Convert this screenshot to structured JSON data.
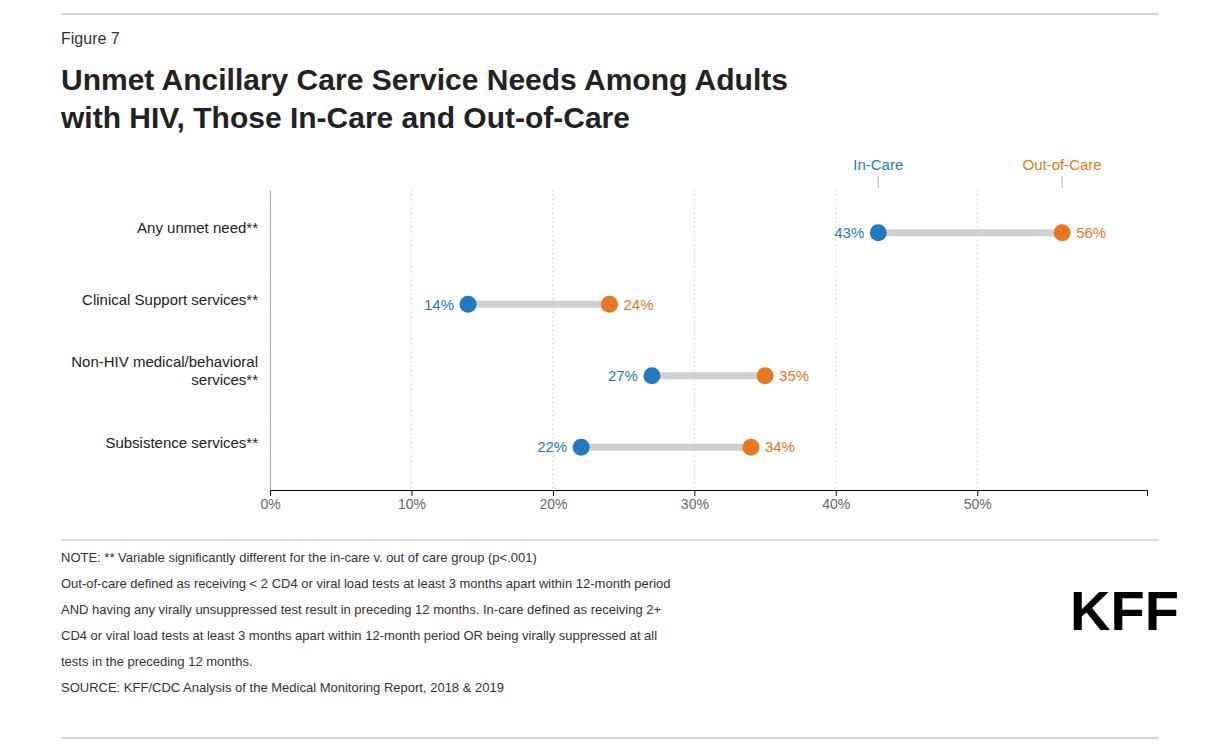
{
  "chart_data": {
    "type": "dumbbell",
    "orientation": "horizontal",
    "subtitle": "Figure 7",
    "title": "Unmet Ancillary Care Service Needs Among Adults\nwith HIV, Those In-Care and Out-of-Care",
    "categories": [
      "Any unmet need**",
      "Clinical Support services**",
      "Non-HIV medical/behavioral\nservices**",
      "Subsistence services**"
    ],
    "series": [
      {
        "name": "In-Care",
        "color": "#1f7abf",
        "values": [
          43,
          14,
          27,
          22
        ],
        "value_labels": [
          "43%",
          "14%",
          "27%",
          "22%"
        ]
      },
      {
        "name": "Out-of-Care",
        "color": "#e87722",
        "values": [
          56,
          24,
          35,
          34
        ],
        "value_labels": [
          "56%",
          "24%",
          "35%",
          "34%"
        ]
      }
    ],
    "color": "#d0d0d0",
    "xlim": [
      0,
      62
    ],
    "xticks": [
      {
        "value": 0,
        "label": "0%"
      },
      {
        "value": 10,
        "label": "10%"
      },
      {
        "value": 20,
        "label": "20%"
      },
      {
        "value": 30,
        "label": "30%"
      },
      {
        "value": 40,
        "label": "40%"
      },
      {
        "value": 50,
        "label": "50%"
      }
    ],
    "grid": true,
    "legend": "top",
    "data_labels": true,
    "notes": [
      "NOTE: ** Variable significantly different for the in-care v. out of care group (p<.001)",
      "Out-of-care defined as receiving < 2 CD4 or viral load tests at least 3 months apart within 12-month period",
      "AND having any virally unsuppressed test result in preceding 12 months. In-care defined as receiving 2+",
      "CD4 or viral load tests at least 3 months apart within 12-month period OR being virally suppressed at all",
      "tests in the preceding 12 months.",
      "SOURCE: KFF/CDC Analysis of the Medical Monitoring Report, 2018 & 2019"
    ],
    "logo": "KFF"
  }
}
